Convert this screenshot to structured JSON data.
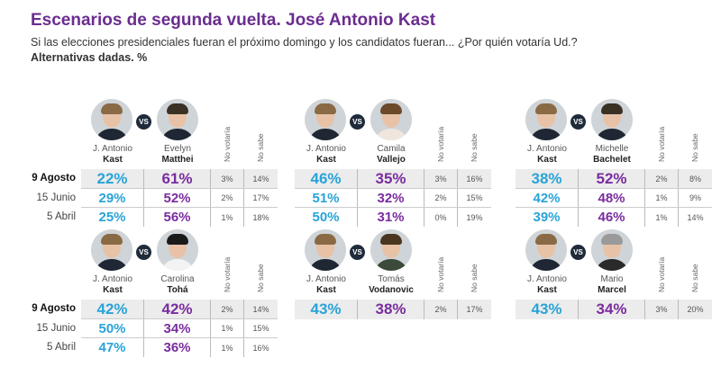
{
  "title": "Escenarios de segunda vuelta. José Antonio Kast",
  "subtitle": "Si las elecciones presidenciales fueran el próximo domingo y los candidatos fueran... ¿Por quién votaría Ud.?",
  "subtitle2": "Alternativas dadas. %",
  "vs_label": "VS",
  "colors": {
    "kast": "#29a3d8",
    "opponent": "#7a2c9e",
    "title": "#6b2d8f"
  },
  "chart_data": {
    "type": "table",
    "columns": [
      "No votaría",
      "No sabe"
    ],
    "dates": [
      "9 Agosto",
      "15 Junio",
      "5 Abril"
    ],
    "scenarios": [
      {
        "a_first": "J. Antonio",
        "a_last": "Kast",
        "b_first": "Evelyn",
        "b_last": "Matthei",
        "rows": [
          [
            "22%",
            "61%",
            "3%",
            "14%"
          ],
          [
            "29%",
            "52%",
            "2%",
            "17%"
          ],
          [
            "25%",
            "56%",
            "1%",
            "18%"
          ]
        ]
      },
      {
        "a_first": "J. Antonio",
        "a_last": "Kast",
        "b_first": "Camila",
        "b_last": "Vallejo",
        "rows": [
          [
            "46%",
            "35%",
            "3%",
            "16%"
          ],
          [
            "51%",
            "32%",
            "2%",
            "15%"
          ],
          [
            "50%",
            "31%",
            "0%",
            "19%"
          ]
        ]
      },
      {
        "a_first": "J. Antonio",
        "a_last": "Kast",
        "b_first": "Michelle",
        "b_last": "Bachelet",
        "rows": [
          [
            "38%",
            "52%",
            "2%",
            "8%"
          ],
          [
            "42%",
            "48%",
            "1%",
            "9%"
          ],
          [
            "39%",
            "46%",
            "1%",
            "14%"
          ]
        ]
      },
      {
        "a_first": "J. Antonio",
        "a_last": "Kast",
        "b_first": "Carolina",
        "b_last": "Tohá",
        "rows": [
          [
            "42%",
            "42%",
            "2%",
            "14%"
          ],
          [
            "50%",
            "34%",
            "1%",
            "15%"
          ],
          [
            "47%",
            "36%",
            "1%",
            "16%"
          ]
        ]
      },
      {
        "a_first": "J. Antonio",
        "a_last": "Kast",
        "b_first": "Tomás",
        "b_last": "Vodanovic",
        "rows": [
          [
            "43%",
            "38%",
            "2%",
            "17%"
          ]
        ]
      },
      {
        "a_first": "J. Antonio",
        "a_last": "Kast",
        "b_first": "Mario",
        "b_last": "Marcel",
        "rows": [
          [
            "43%",
            "34%",
            "3%",
            "20%"
          ]
        ]
      }
    ]
  }
}
